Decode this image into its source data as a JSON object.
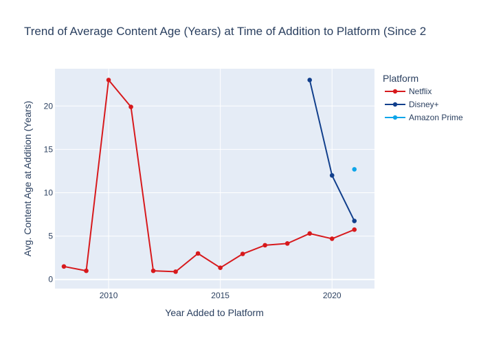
{
  "chart_data": {
    "type": "line",
    "title": "Trend of Average Content Age (Years) at Time of Addition to Platform (Since 2",
    "xlabel": "Year Added to Platform",
    "ylabel": "Avg. Content Age at Addition (Years)",
    "xlim": [
      2007.6,
      2021.9
    ],
    "ylim": [
      -1.05,
      24.3
    ],
    "x_ticks": [
      2010,
      2015,
      2020
    ],
    "y_ticks": [
      0,
      5,
      10,
      15,
      20
    ],
    "grid": true,
    "legend": {
      "title": "Platform",
      "position": "top-right-outside"
    },
    "series": [
      {
        "name": "Netflix",
        "color": "#d7191c",
        "points": [
          {
            "x": 2008,
            "y": 1.5
          },
          {
            "x": 2009,
            "y": 1.0
          },
          {
            "x": 2010,
            "y": 23.0
          },
          {
            "x": 2011,
            "y": 19.9
          },
          {
            "x": 2012,
            "y": 1.0
          },
          {
            "x": 2013,
            "y": 0.9
          },
          {
            "x": 2014,
            "y": 3.0
          },
          {
            "x": 2015,
            "y": 1.35
          },
          {
            "x": 2016,
            "y": 2.95
          },
          {
            "x": 2017,
            "y": 3.95
          },
          {
            "x": 2018,
            "y": 4.15
          },
          {
            "x": 2019,
            "y": 5.3
          },
          {
            "x": 2020,
            "y": 4.7
          },
          {
            "x": 2021,
            "y": 5.75
          }
        ]
      },
      {
        "name": "Disney+",
        "color": "#113f8c",
        "points": [
          {
            "x": 2019,
            "y": 23.0
          },
          {
            "x": 2020,
            "y": 12.0
          },
          {
            "x": 2021,
            "y": 6.75
          }
        ]
      },
      {
        "name": "Amazon Prime",
        "color": "#0ea5e9",
        "points": [
          {
            "x": 2021,
            "y": 12.7
          }
        ]
      }
    ]
  }
}
